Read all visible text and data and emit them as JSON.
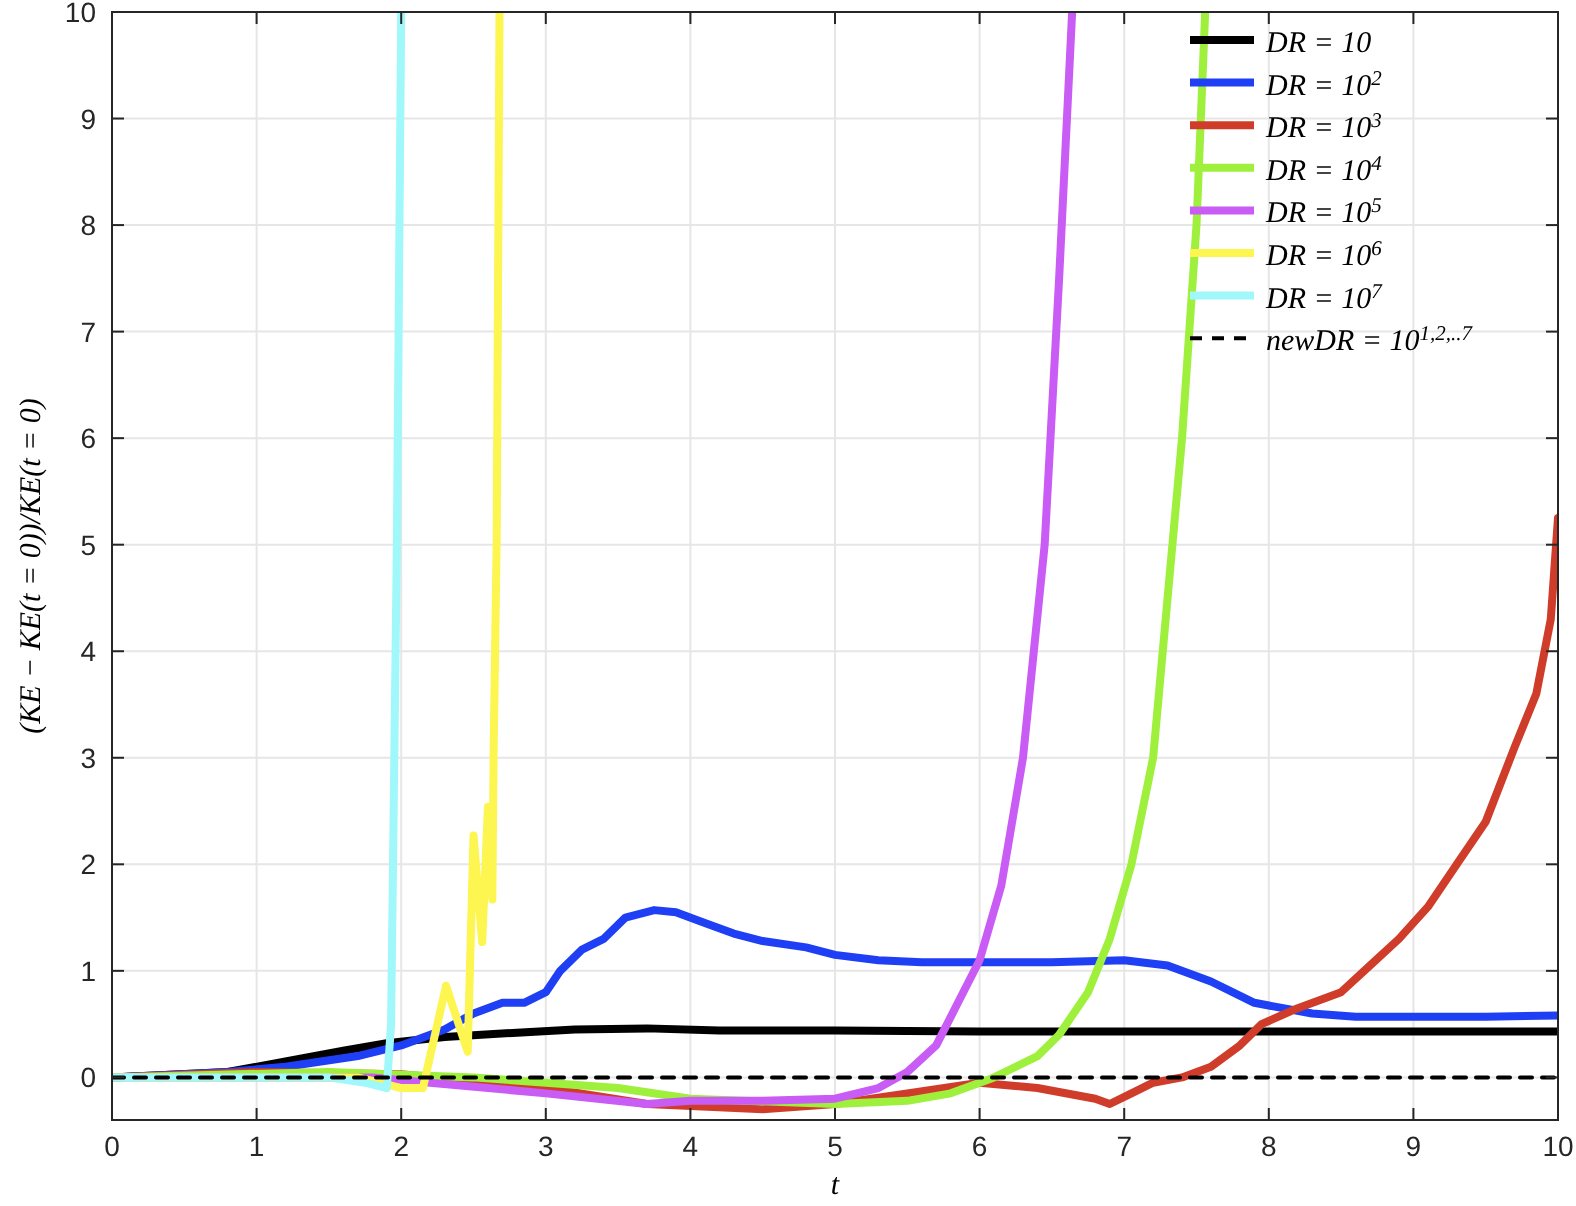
{
  "chart_data": {
    "type": "line",
    "xlabel": "t",
    "ylabel": "(KE − KE(t = 0))/KE(t = 0)",
    "xlim": [
      0,
      10
    ],
    "ylim": [
      -0.4,
      10
    ],
    "xticks": [
      0,
      1,
      2,
      3,
      4,
      5,
      6,
      7,
      8,
      9,
      10
    ],
    "yticks": [
      0,
      1,
      2,
      3,
      4,
      5,
      6,
      7,
      8,
      9,
      10
    ],
    "grid": true,
    "legend": "top right",
    "series": [
      {
        "name": "DR = 10",
        "color": "#000000",
        "x": [
          0,
          0.8,
          1.2,
          1.6,
          1.9,
          2.3,
          2.8,
          3.2,
          3.7,
          4.2,
          5,
          6,
          7,
          8,
          9,
          10
        ],
        "values": [
          0,
          0.05,
          0.15,
          0.25,
          0.32,
          0.38,
          0.42,
          0.45,
          0.46,
          0.44,
          0.44,
          0.43,
          0.43,
          0.43,
          0.43,
          0.43
        ]
      },
      {
        "name": "DR = 10$^{2}$",
        "color": "#1f3ff5",
        "x": [
          0,
          0.8,
          1.2,
          1.7,
          2.0,
          2.3,
          2.5,
          2.7,
          2.85,
          3.0,
          3.1,
          3.25,
          3.4,
          3.55,
          3.75,
          3.9,
          4.1,
          4.3,
          4.5,
          4.8,
          5.0,
          5.3,
          5.6,
          6,
          6.5,
          7,
          7.3,
          7.6,
          7.9,
          8.3,
          8.6,
          9.5,
          10
        ],
        "values": [
          0,
          0.05,
          0.1,
          0.2,
          0.3,
          0.45,
          0.6,
          0.7,
          0.7,
          0.8,
          1.0,
          1.2,
          1.3,
          1.5,
          1.57,
          1.55,
          1.45,
          1.35,
          1.28,
          1.22,
          1.15,
          1.1,
          1.08,
          1.08,
          1.08,
          1.1,
          1.05,
          0.9,
          0.7,
          0.6,
          0.57,
          0.57,
          0.58
        ]
      },
      {
        "name": "DR = 10$^{3}$",
        "color": "#d03c2a",
        "x": [
          0,
          1,
          2,
          3,
          3.7,
          4.5,
          5,
          5.5,
          6,
          6.4,
          6.8,
          6.9,
          7.05,
          7.2,
          7.4,
          7.6,
          7.8,
          7.95,
          8.2,
          8.5,
          8.7,
          8.9,
          9.1,
          9.3,
          9.5,
          9.7,
          9.85,
          9.95,
          10
        ],
        "values": [
          0,
          0.05,
          0.03,
          -0.1,
          -0.25,
          -0.3,
          -0.25,
          -0.15,
          -0.05,
          -0.1,
          -0.2,
          -0.25,
          -0.15,
          -0.05,
          0,
          0.1,
          0.3,
          0.5,
          0.65,
          0.8,
          1.05,
          1.3,
          1.6,
          2.0,
          2.4,
          3.1,
          3.6,
          4.3,
          5.25
        ]
      },
      {
        "name": "DR = 10$^{4}$",
        "color": "#9ef03c",
        "x": [
          0,
          1.5,
          2.5,
          3.5,
          4,
          5,
          5.5,
          5.8,
          6.1,
          6.4,
          6.55,
          6.75,
          6.9,
          7.05,
          7.2,
          7.3,
          7.4,
          7.5,
          7.56
        ],
        "values": [
          0,
          0.05,
          0,
          -0.1,
          -0.2,
          -0.25,
          -0.22,
          -0.15,
          0,
          0.2,
          0.4,
          0.8,
          1.3,
          2,
          3,
          4.5,
          6,
          8,
          10
        ]
      },
      {
        "name": "DR = 10$^{5}$",
        "color": "#c85cf5",
        "x": [
          0,
          1.8,
          2.2,
          3,
          3.7,
          4,
          4.5,
          5,
          5.3,
          5.5,
          5.7,
          5.85,
          6,
          6.15,
          6.3,
          6.45,
          6.55,
          6.64
        ],
        "values": [
          0,
          0,
          -0.05,
          -0.15,
          -0.25,
          -0.22,
          -0.22,
          -0.2,
          -0.1,
          0.05,
          0.3,
          0.7,
          1.1,
          1.8,
          3,
          5,
          7.5,
          10
        ]
      },
      {
        "name": "DR = 10$^{6}$",
        "color": "#fdf550",
        "x": [
          0,
          1.7,
          1.85,
          2.0,
          2.15,
          2.31,
          2.46,
          2.5,
          2.56,
          2.6,
          2.63,
          2.64,
          2.66,
          2.68
        ],
        "values": [
          0,
          0,
          -0.05,
          -0.1,
          -0.1,
          0.86,
          0.24,
          2.27,
          1.27,
          2.54,
          1.67,
          3.15,
          5,
          10
        ]
      },
      {
        "name": "DR = 10$^{7}$",
        "color": "#a0f8fa",
        "x": [
          0,
          1.5,
          1.75,
          1.9,
          1.93,
          1.97,
          2.0
        ],
        "values": [
          0,
          0,
          -0.05,
          -0.1,
          0.5,
          5,
          10
        ]
      },
      {
        "name": "newDR = 10$^{1,2,..7}$",
        "color": "#000000",
        "line_style": "dashed",
        "x": [
          0,
          10
        ],
        "values": [
          0,
          0
        ]
      }
    ]
  }
}
